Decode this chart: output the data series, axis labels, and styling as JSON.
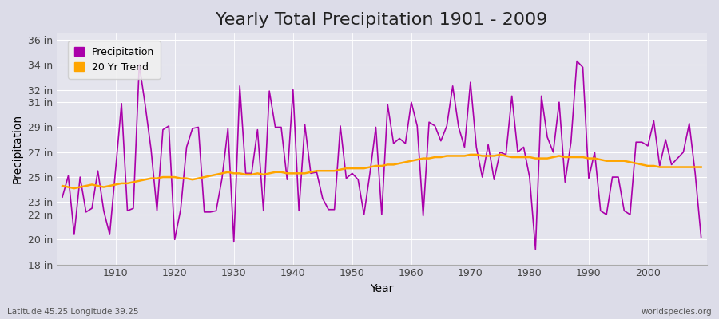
{
  "title": "Yearly Total Precipitation 1901 - 2009",
  "xlabel": "Year",
  "ylabel": "Precipitation",
  "subtitle": "Latitude 45.25 Longitude 39.25",
  "watermark": "worldspecies.org",
  "years": [
    1901,
    1902,
    1903,
    1904,
    1905,
    1906,
    1907,
    1908,
    1909,
    1910,
    1911,
    1912,
    1913,
    1914,
    1915,
    1916,
    1917,
    1918,
    1919,
    1920,
    1921,
    1922,
    1923,
    1924,
    1925,
    1926,
    1927,
    1928,
    1929,
    1930,
    1931,
    1932,
    1933,
    1934,
    1935,
    1936,
    1937,
    1938,
    1939,
    1940,
    1941,
    1942,
    1943,
    1944,
    1945,
    1946,
    1947,
    1948,
    1949,
    1950,
    1951,
    1952,
    1953,
    1954,
    1955,
    1956,
    1957,
    1958,
    1959,
    1960,
    1961,
    1962,
    1963,
    1964,
    1965,
    1966,
    1967,
    1968,
    1969,
    1970,
    1971,
    1972,
    1973,
    1974,
    1975,
    1976,
    1977,
    1978,
    1979,
    1980,
    1981,
    1982,
    1983,
    1984,
    1985,
    1986,
    1987,
    1988,
    1989,
    1990,
    1991,
    1992,
    1993,
    1994,
    1995,
    1996,
    1997,
    1998,
    1999,
    2000,
    2001,
    2002,
    2003,
    2004,
    2005,
    2006,
    2007,
    2008,
    2009
  ],
  "precip": [
    23.4,
    25.1,
    20.4,
    25.0,
    22.2,
    22.5,
    25.5,
    22.3,
    20.4,
    25.6,
    30.9,
    22.3,
    22.5,
    34.0,
    30.8,
    27.2,
    22.3,
    28.8,
    29.1,
    20.0,
    22.4,
    27.4,
    28.9,
    29.0,
    22.2,
    22.2,
    22.3,
    24.9,
    28.9,
    19.8,
    32.3,
    25.3,
    25.3,
    28.8,
    22.3,
    31.9,
    29.0,
    29.0,
    24.8,
    32.0,
    22.3,
    29.2,
    25.3,
    25.4,
    23.3,
    22.4,
    22.4,
    29.1,
    24.9,
    25.3,
    24.8,
    22.0,
    25.3,
    29.0,
    22.0,
    30.8,
    27.7,
    28.1,
    27.7,
    31.0,
    29.1,
    21.9,
    29.4,
    29.1,
    27.9,
    29.1,
    32.3,
    29.0,
    27.4,
    32.6,
    27.4,
    25.0,
    27.6,
    24.8,
    27.0,
    26.8,
    31.5,
    27.0,
    27.4,
    25.0,
    19.2,
    31.5,
    28.2,
    27.0,
    31.0,
    24.6,
    27.8,
    34.3,
    33.8,
    24.9,
    27.0,
    22.3,
    22.0,
    25.0,
    25.0,
    22.3,
    22.0,
    27.8,
    27.8,
    27.5,
    29.5,
    25.9,
    28.0,
    26.0,
    26.5,
    27.0,
    29.3,
    25.3,
    20.2
  ],
  "trend": [
    24.3,
    24.2,
    24.1,
    24.2,
    24.3,
    24.4,
    24.3,
    24.2,
    24.3,
    24.4,
    24.5,
    24.5,
    24.6,
    24.7,
    24.8,
    24.9,
    24.9,
    25.0,
    25.0,
    25.0,
    24.9,
    24.9,
    24.8,
    24.9,
    25.0,
    25.1,
    25.2,
    25.3,
    25.4,
    25.3,
    25.3,
    25.2,
    25.2,
    25.3,
    25.2,
    25.3,
    25.4,
    25.4,
    25.3,
    25.3,
    25.3,
    25.3,
    25.4,
    25.5,
    25.5,
    25.5,
    25.5,
    25.6,
    25.7,
    25.7,
    25.7,
    25.7,
    25.8,
    25.9,
    25.9,
    26.0,
    26.0,
    26.1,
    26.2,
    26.3,
    26.4,
    26.5,
    26.5,
    26.6,
    26.6,
    26.7,
    26.7,
    26.7,
    26.7,
    26.8,
    26.8,
    26.7,
    26.7,
    26.7,
    26.8,
    26.7,
    26.6,
    26.6,
    26.6,
    26.6,
    26.5,
    26.5,
    26.5,
    26.6,
    26.7,
    26.6,
    26.6,
    26.6,
    26.6,
    26.5,
    26.5,
    26.4,
    26.3,
    26.3,
    26.3,
    26.3,
    26.2,
    26.1,
    26.0,
    25.9,
    25.9,
    25.8,
    25.8,
    25.8,
    25.8,
    25.8,
    25.8,
    25.8,
    25.8
  ],
  "precip_color": "#AA00AA",
  "trend_color": "#FFA500",
  "bg_color": "#DCDCE8",
  "plot_bg_color": "#E4E4ED",
  "grid_color": "#FFFFFF",
  "ylim": [
    18,
    36.5
  ],
  "yticks": [
    18,
    20,
    22,
    23,
    25,
    27,
    29,
    31,
    32,
    34,
    36
  ],
  "ytick_labels": [
    "18 in",
    "20 in",
    "22 in",
    "23 in",
    "25 in",
    "27 in",
    "29 in",
    "31 in",
    "32 in",
    "34 in",
    "36 in"
  ],
  "xticks": [
    1910,
    1920,
    1930,
    1940,
    1950,
    1960,
    1970,
    1980,
    1990,
    2000
  ],
  "xlim": [
    1900,
    2010
  ],
  "title_fontsize": 16,
  "axis_label_fontsize": 10,
  "tick_fontsize": 9,
  "legend_fontsize": 9
}
